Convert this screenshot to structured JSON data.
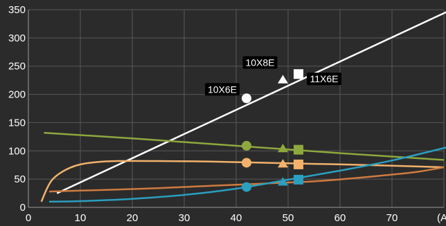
{
  "chart_data": {
    "type": "line",
    "xlim": [
      0,
      80
    ],
    "ylim": [
      0,
      350
    ],
    "xticks": [
      "0",
      "10",
      "20",
      "30",
      "40",
      "50",
      "60",
      "70",
      "(A)"
    ],
    "yticks": [
      "0",
      "50",
      "100",
      "150",
      "200",
      "250",
      "300",
      "350"
    ],
    "grid": true,
    "series": [
      {
        "color": "#ffffff",
        "points": [
          [
            5.5,
            25
          ],
          [
            81,
            348
          ]
        ]
      },
      {
        "color": "#8fa83d",
        "points": [
          [
            3,
            132
          ],
          [
            20,
            122
          ],
          [
            40,
            109
          ],
          [
            60,
            96
          ],
          [
            80,
            84
          ]
        ]
      },
      {
        "color": "#f2b26c",
        "points": [
          [
            2.5,
            10
          ],
          [
            3.5,
            32
          ],
          [
            4.5,
            48
          ],
          [
            6,
            60
          ],
          [
            8,
            70
          ],
          [
            10,
            76
          ],
          [
            13,
            80
          ],
          [
            17,
            82
          ],
          [
            25,
            82
          ],
          [
            35,
            81
          ],
          [
            45,
            79
          ],
          [
            55,
            77
          ],
          [
            65,
            75
          ],
          [
            80,
            71
          ]
        ]
      },
      {
        "color": "#cf7b40",
        "points": [
          [
            4,
            28
          ],
          [
            15,
            31
          ],
          [
            25,
            34
          ],
          [
            35,
            38
          ],
          [
            45,
            42
          ],
          [
            55,
            46
          ],
          [
            62,
            51
          ],
          [
            70,
            58
          ],
          [
            75,
            63
          ],
          [
            80,
            71
          ]
        ]
      },
      {
        "color": "#2a9fc0",
        "points": [
          [
            4,
            10
          ],
          [
            10,
            11
          ],
          [
            20,
            15
          ],
          [
            30,
            22
          ],
          [
            40,
            33
          ],
          [
            50,
            49
          ],
          [
            60,
            65
          ],
          [
            70,
            83
          ],
          [
            80,
            105
          ],
          [
            81,
            108
          ]
        ]
      }
    ],
    "markers": [
      {
        "shape": "circle",
        "color": "#ffffff",
        "x": 42,
        "y": 193
      },
      {
        "shape": "triangle",
        "color": "#ffffff",
        "x": 49,
        "y": 226
      },
      {
        "shape": "square",
        "color": "#ffffff",
        "x": 52,
        "y": 236
      },
      {
        "shape": "circle",
        "color": "#8fa83d",
        "x": 42,
        "y": 109
      },
      {
        "shape": "triangle",
        "color": "#8fa83d",
        "x": 49,
        "y": 104
      },
      {
        "shape": "square",
        "color": "#8fa83d",
        "x": 52,
        "y": 102
      },
      {
        "shape": "circle",
        "color": "#f2b26c",
        "x": 42,
        "y": 79
      },
      {
        "shape": "triangle",
        "color": "#f2b26c",
        "x": 49,
        "y": 77
      },
      {
        "shape": "square",
        "color": "#f2b26c",
        "x": 52,
        "y": 76
      },
      {
        "shape": "circle",
        "color": "#2a9fc0",
        "x": 42,
        "y": 36
      },
      {
        "shape": "triangle",
        "color": "#2a9fc0",
        "x": 49,
        "y": 45
      },
      {
        "shape": "square",
        "color": "#2a9fc0",
        "x": 52,
        "y": 49
      }
    ],
    "annotations": [
      {
        "text": "10X6E",
        "x": 42,
        "y": 193,
        "anchor": "left"
      },
      {
        "text": "10X8E",
        "x": 49,
        "y": 226,
        "anchor": "above-left"
      },
      {
        "text": "11X6E",
        "x": 52,
        "y": 236,
        "anchor": "right"
      }
    ]
  }
}
